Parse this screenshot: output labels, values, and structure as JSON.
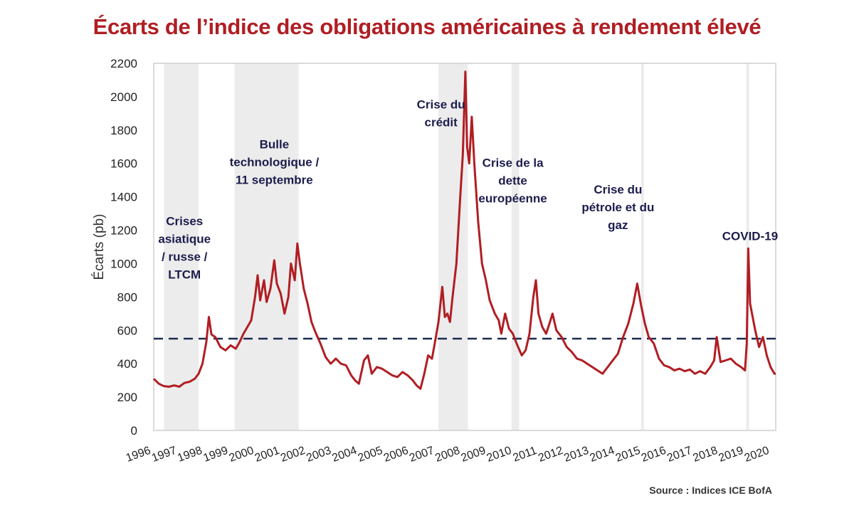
{
  "title": "Écarts de l’indice des obligations américaines à rendement élevé",
  "source": "Source : Indices ICE BofA",
  "colors": {
    "title": "#b01e23",
    "line": "#b01e23",
    "reference": "#1b2a52",
    "shade": "#ececec",
    "annotation": "#1c1c4d"
  },
  "chart_data": {
    "type": "line",
    "title": "Écarts de l’indice des obligations américaines à rendement élevé",
    "xlabel": "",
    "ylabel": "Écarts (pb)",
    "xlim": [
      1996.5,
      2020.75
    ],
    "ylim": [
      0,
      2200
    ],
    "y_ticks": [
      0,
      200,
      400,
      600,
      800,
      1000,
      1200,
      1400,
      1600,
      1800,
      2000,
      2200
    ],
    "x_tick_labels": [
      "1996",
      "1997",
      "1998",
      "1999",
      "2000",
      "2001",
      "2002",
      "2003",
      "2004",
      "2005",
      "2006",
      "2007",
      "2008",
      "2009",
      "2010",
      "2011",
      "2012",
      "2013",
      "2014",
      "2015",
      "2016",
      "2017",
      "2018",
      "2019",
      "2020"
    ],
    "grid": false,
    "reference_line": {
      "y": 550,
      "style": "dashed"
    },
    "shaded_periods": [
      {
        "start": 1996.9,
        "end": 1998.25
      },
      {
        "start": 1999.65,
        "end": 2002.15
      },
      {
        "start": 2007.6,
        "end": 2008.75
      },
      {
        "start": 2010.45,
        "end": 2010.75
      },
      {
        "start": 2015.5,
        "end": 2015.6
      },
      {
        "start": 2019.6,
        "end": 2019.7
      }
    ],
    "annotations": [
      {
        "lines": [
          "Crises",
          "asiatique",
          "/ russe /",
          "LTCM"
        ],
        "x": 1997.7,
        "y": 1230
      },
      {
        "lines": [
          "Bulle",
          "technologique /",
          "11 septembre"
        ],
        "x": 2001.2,
        "y": 1690
      },
      {
        "lines": [
          "Crise du",
          "crédit"
        ],
        "x": 2007.7,
        "y": 1930
      },
      {
        "lines": [
          "Crise de la",
          "dette",
          "européenne"
        ],
        "x": 2010.5,
        "y": 1580
      },
      {
        "lines": [
          "Crise du",
          "pétrole et du",
          "gaz"
        ],
        "x": 2014.6,
        "y": 1420
      },
      {
        "lines": [
          "COVID-19"
        ],
        "x": 2019.75,
        "y": 1140
      }
    ],
    "series": [
      {
        "points": [
          [
            1996.5,
            310
          ],
          [
            1996.7,
            280
          ],
          [
            1996.9,
            265
          ],
          [
            1997.1,
            262
          ],
          [
            1997.3,
            270
          ],
          [
            1997.5,
            262
          ],
          [
            1997.7,
            285
          ],
          [
            1997.9,
            292
          ],
          [
            1998.1,
            310
          ],
          [
            1998.25,
            340
          ],
          [
            1998.4,
            400
          ],
          [
            1998.55,
            530
          ],
          [
            1998.65,
            680
          ],
          [
            1998.75,
            575
          ],
          [
            1998.9,
            560
          ],
          [
            1999.1,
            500
          ],
          [
            1999.3,
            480
          ],
          [
            1999.5,
            510
          ],
          [
            1999.7,
            490
          ],
          [
            1999.85,
            530
          ],
          [
            2000.0,
            580
          ],
          [
            2000.15,
            620
          ],
          [
            2000.3,
            660
          ],
          [
            2000.45,
            800
          ],
          [
            2000.55,
            930
          ],
          [
            2000.65,
            780
          ],
          [
            2000.8,
            900
          ],
          [
            2000.9,
            770
          ],
          [
            2001.05,
            850
          ],
          [
            2001.2,
            1020
          ],
          [
            2001.3,
            880
          ],
          [
            2001.45,
            820
          ],
          [
            2001.6,
            700
          ],
          [
            2001.75,
            800
          ],
          [
            2001.85,
            1000
          ],
          [
            2002.0,
            900
          ],
          [
            2002.1,
            1120
          ],
          [
            2002.2,
            1000
          ],
          [
            2002.35,
            850
          ],
          [
            2002.5,
            760
          ],
          [
            2002.65,
            650
          ],
          [
            2002.8,
            590
          ],
          [
            2003.0,
            520
          ],
          [
            2003.2,
            440
          ],
          [
            2003.4,
            400
          ],
          [
            2003.6,
            430
          ],
          [
            2003.8,
            400
          ],
          [
            2004.0,
            390
          ],
          [
            2004.2,
            330
          ],
          [
            2004.35,
            300
          ],
          [
            2004.5,
            280
          ],
          [
            2004.7,
            420
          ],
          [
            2004.85,
            450
          ],
          [
            2005.0,
            340
          ],
          [
            2005.2,
            380
          ],
          [
            2005.4,
            370
          ],
          [
            2005.6,
            350
          ],
          [
            2005.8,
            330
          ],
          [
            2006.0,
            320
          ],
          [
            2006.2,
            350
          ],
          [
            2006.4,
            330
          ],
          [
            2006.6,
            300
          ],
          [
            2006.75,
            270
          ],
          [
            2006.9,
            250
          ],
          [
            2007.05,
            340
          ],
          [
            2007.2,
            450
          ],
          [
            2007.35,
            430
          ],
          [
            2007.5,
            560
          ],
          [
            2007.6,
            650
          ],
          [
            2007.75,
            860
          ],
          [
            2007.85,
            680
          ],
          [
            2007.95,
            700
          ],
          [
            2008.05,
            650
          ],
          [
            2008.15,
            800
          ],
          [
            2008.3,
            1000
          ],
          [
            2008.45,
            1400
          ],
          [
            2008.55,
            1650
          ],
          [
            2008.65,
            2150
          ],
          [
            2008.72,
            1700
          ],
          [
            2008.8,
            1600
          ],
          [
            2008.9,
            1880
          ],
          [
            2009.0,
            1600
          ],
          [
            2009.15,
            1250
          ],
          [
            2009.3,
            1000
          ],
          [
            2009.45,
            900
          ],
          [
            2009.6,
            780
          ],
          [
            2009.8,
            700
          ],
          [
            2009.95,
            660
          ],
          [
            2010.05,
            580
          ],
          [
            2010.2,
            700
          ],
          [
            2010.35,
            610
          ],
          [
            2010.5,
            580
          ],
          [
            2010.65,
            520
          ],
          [
            2010.85,
            450
          ],
          [
            2011.0,
            480
          ],
          [
            2011.15,
            580
          ],
          [
            2011.3,
            800
          ],
          [
            2011.4,
            900
          ],
          [
            2011.5,
            700
          ],
          [
            2011.65,
            620
          ],
          [
            2011.8,
            580
          ],
          [
            2011.95,
            650
          ],
          [
            2012.05,
            700
          ],
          [
            2012.2,
            600
          ],
          [
            2012.4,
            560
          ],
          [
            2012.6,
            500
          ],
          [
            2012.8,
            470
          ],
          [
            2013.0,
            430
          ],
          [
            2013.2,
            420
          ],
          [
            2013.4,
            400
          ],
          [
            2013.6,
            380
          ],
          [
            2013.8,
            360
          ],
          [
            2014.0,
            340
          ],
          [
            2014.2,
            380
          ],
          [
            2014.4,
            420
          ],
          [
            2014.6,
            460
          ],
          [
            2014.8,
            560
          ],
          [
            2015.0,
            640
          ],
          [
            2015.2,
            760
          ],
          [
            2015.35,
            880
          ],
          [
            2015.5,
            750
          ],
          [
            2015.65,
            640
          ],
          [
            2015.8,
            560
          ],
          [
            2016.0,
            520
          ],
          [
            2016.2,
            430
          ],
          [
            2016.4,
            390
          ],
          [
            2016.6,
            380
          ],
          [
            2016.8,
            360
          ],
          [
            2017.0,
            370
          ],
          [
            2017.2,
            355
          ],
          [
            2017.4,
            365
          ],
          [
            2017.6,
            340
          ],
          [
            2017.8,
            355
          ],
          [
            2018.0,
            340
          ],
          [
            2018.2,
            380
          ],
          [
            2018.35,
            420
          ],
          [
            2018.45,
            560
          ],
          [
            2018.6,
            410
          ],
          [
            2018.8,
            420
          ],
          [
            2019.0,
            430
          ],
          [
            2019.2,
            400
          ],
          [
            2019.4,
            380
          ],
          [
            2019.55,
            360
          ],
          [
            2019.62,
            520
          ],
          [
            2019.68,
            1090
          ],
          [
            2019.75,
            760
          ],
          [
            2019.85,
            680
          ],
          [
            2019.95,
            600
          ],
          [
            2020.1,
            500
          ],
          [
            2020.25,
            560
          ],
          [
            2020.4,
            450
          ],
          [
            2020.55,
            380
          ],
          [
            2020.7,
            340
          ],
          [
            2020.75,
            340
          ]
        ]
      }
    ]
  }
}
